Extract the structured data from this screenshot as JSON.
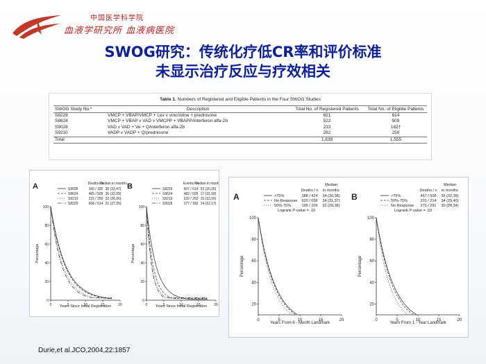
{
  "header": {
    "org_cn": "中国医学科学院",
    "org_sub": "血液学研究所 血液病医院"
  },
  "title": {
    "line1": "SWOG研究：传统化疗低CR率和评价标准",
    "line2": "未显示治疗反应与疗效相关"
  },
  "table": {
    "caption_bold": "Table 1.",
    "caption_rest": " Numbers of Registered and Eligible Patients in the Four SWOG Studies",
    "headers": [
      "SWOG Study No.*",
      "Description",
      "Total No. of Registered Patients",
      "Total No. of Eligible Patients"
    ],
    "rows": [
      {
        "study": "S8229",
        "description": "VMCP + VBAP/VMCP + Lev v vincristine + prednisone",
        "registered": "621",
        "eligible": "614"
      },
      {
        "study": "S8624",
        "description": "VMCP + VBAP v VAD v VMCPP + VBAPP/interferon alfa-2b",
        "registered": "522",
        "eligible": "509"
      },
      {
        "study": "S9028",
        "description": "VAD v VAD + Ve + Q/interferon alfa-2b",
        "registered": "233",
        "eligible": "182†"
      },
      {
        "study": "S9210",
        "description": "VADP v VADP + Q/prednisone",
        "registered": "262",
        "eligible": "250"
      }
    ],
    "total": {
      "label": "Total",
      "registered": "1,638",
      "eligible": "1,555"
    }
  },
  "figure_left": {
    "panelA": {
      "label": "A",
      "col_headers": [
        "Deaths / n",
        "Median in months"
      ],
      "legend": [
        {
          "name": "S9028",
          "deaths": "160 / 182",
          "median": "36 (33,47)"
        },
        {
          "name": "S8624",
          "deaths": "465 / 509",
          "median": "36 (32,39)"
        },
        {
          "name": "S9210",
          "deaths": "215 / 250",
          "median": "32 (26,36)"
        },
        {
          "name": "S8229",
          "deaths": "604 / 614",
          "median": "31 (27,35)"
        }
      ],
      "ylabel": "Percentage",
      "xlabel": "Years Since Initial Registration"
    },
    "panelB": {
      "label": "B",
      "col_headers": [
        "Events / n",
        "Median in months"
      ],
      "legend": [
        {
          "name": "S8229",
          "deaths": "607 / 614",
          "median": "23 (20,26)"
        },
        {
          "name": "S8624",
          "deaths": "482 / 509",
          "median": "17 (15,18)"
        },
        {
          "name": "S9210",
          "deaths": "232 / 250",
          "median": "15 (13,16)"
        },
        {
          "name": "S9028",
          "deaths": "177 / 182",
          "median": "14 (12,17)"
        }
      ],
      "ylabel": "Percentage",
      "xlabel": "Years Since Initial Registration"
    },
    "x_ticks": [
      "0",
      "5",
      "10",
      "15",
      "20"
    ],
    "y_ticks": [
      "0",
      "20",
      "40",
      "60",
      "80",
      "100"
    ]
  },
  "figure_right": {
    "panelA": {
      "label": "A",
      "median_head": "Median",
      "col_headers": [
        "Deaths / n",
        "in months"
      ],
      "legend": [
        {
          "name": ">75%",
          "deaths": "388 / 424",
          "median": "34 (30,38)"
        },
        {
          "name": "No Response",
          "deaths": "620 / 658",
          "median": "34 (31,37)"
        },
        {
          "name": "50%-75%",
          "deaths": "195 / 209",
          "median": "32 (28,36)"
        }
      ],
      "pvalue": "Logrank P-value = .19",
      "ylabel": "Percentage",
      "xlabel": "Years From 6 - Month Landmark"
    },
    "panelB": {
      "label": "B",
      "median_head": "Median",
      "col_headers": [
        "Deaths / n",
        "in months"
      ],
      "legend": [
        {
          "name": ">75%",
          "deaths": "467 / 508",
          "median": "35 (32,39)"
        },
        {
          "name": "50%-75%",
          "deaths": "201 / 214",
          "median": "34 (29,40)"
        },
        {
          "name": "No Response",
          "deaths": "270 / 291",
          "median": "30 (28,34)"
        }
      ],
      "pvalue": "Logrank P-value = .53",
      "ylabel": "Percentage",
      "xlabel": "Years From 1 - Year Landmark"
    },
    "x_ticks": [
      "0",
      "5",
      "10",
      "15",
      "20"
    ],
    "y_ticks": [
      "20",
      "40",
      "60",
      "80",
      "100"
    ]
  },
  "citation": "Durie,et al.JCO,2004,22:1857",
  "colors": {
    "title": "#0f1f9a",
    "logo": "#c0392b"
  },
  "icons": {
    "logo": "institute-logo"
  }
}
